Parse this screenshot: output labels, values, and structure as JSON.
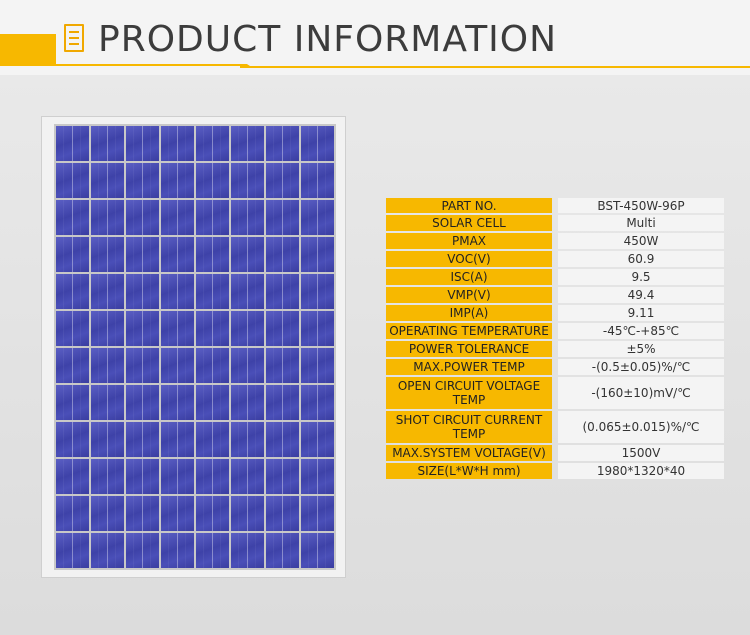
{
  "header": {
    "title": "PRODUCT INFORMATION",
    "icon": "document-icon",
    "accent_color": "#f7b800"
  },
  "product_image": {
    "icon": "solar-panel-image",
    "cell_color": "#4346ad"
  },
  "specs": [
    {
      "label": "PART NO.",
      "value": "BST-450W-96P"
    },
    {
      "label": "SOLAR CELL",
      "value": "Multi"
    },
    {
      "label": "PMAX",
      "value": "450W"
    },
    {
      "label": "VOC(V)",
      "value": "60.9"
    },
    {
      "label": "ISC(A)",
      "value": "9.5"
    },
    {
      "label": "VMP(V)",
      "value": "49.4"
    },
    {
      "label": "IMP(A)",
      "value": "9.11"
    },
    {
      "label": "OPERATING TEMPERATURE",
      "value": "-45℃-+85℃"
    },
    {
      "label": "POWER TOLERANCE",
      "value": "±5%"
    },
    {
      "label": "MAX.POWER TEMP",
      "value": "-(0.5±0.05)%/℃"
    },
    {
      "label": "OPEN CIRCUIT VOLTAGE TEMP",
      "value": "-(160±10)mV/℃"
    },
    {
      "label": "SHOT CIRCUIT CURRENT TEMP",
      "value": "(0.065±0.015)%/℃"
    },
    {
      "label": "MAX.SYSTEM VOLTAGE(V)",
      "value": "1500V"
    },
    {
      "label": "SIZE(L*W*H mm)",
      "value": "1980*1320*40"
    }
  ]
}
